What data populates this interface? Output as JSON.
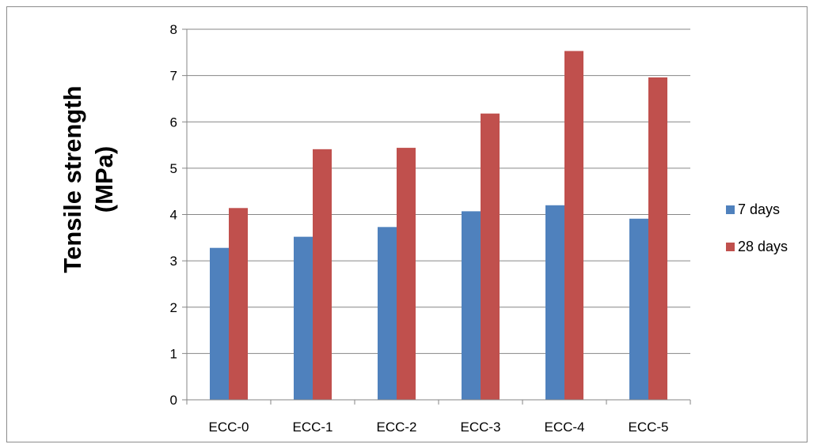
{
  "chart_data": {
    "type": "bar",
    "title": "",
    "xlabel": "",
    "ylabel_lines": [
      "Tensile strength",
      "(MPa)"
    ],
    "categories": [
      "ECC-0",
      "ECC-1",
      "ECC-2",
      "ECC-3",
      "ECC-4",
      "ECC-5"
    ],
    "series": [
      {
        "name": "7 days",
        "color": "#4f81bd",
        "values": [
          3.28,
          3.52,
          3.73,
          4.07,
          4.2,
          3.91
        ]
      },
      {
        "name": "28 days",
        "color": "#c0504d",
        "values": [
          4.14,
          5.41,
          5.44,
          6.18,
          7.53,
          6.96
        ]
      }
    ],
    "ylim": [
      0,
      8
    ],
    "yticks": [
      "0",
      "1",
      "2",
      "3",
      "4",
      "5",
      "6",
      "7",
      "8"
    ],
    "grid": true,
    "legend_position": "right"
  }
}
